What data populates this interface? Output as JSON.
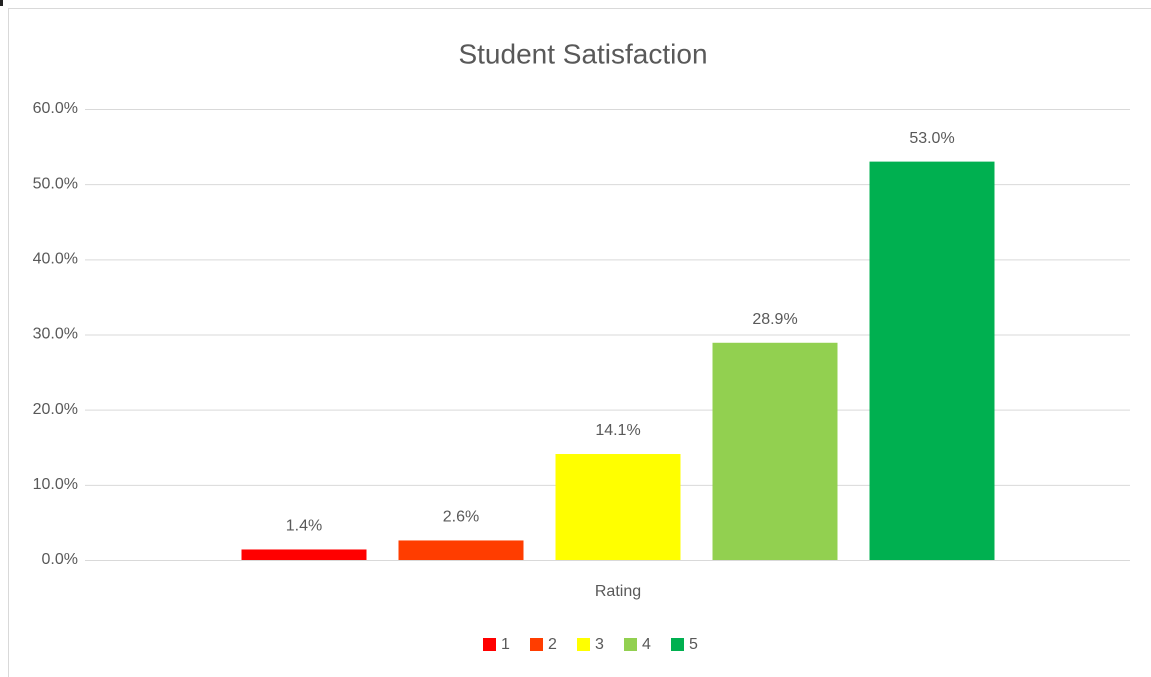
{
  "chart_data": {
    "type": "bar",
    "title": "Student Satisfaction",
    "xlabel": "Rating",
    "categories": [
      "Rating"
    ],
    "series": [
      {
        "name": "1",
        "color": "#ff0000",
        "values": [
          1.4
        ],
        "value_labels": [
          "1.4%"
        ]
      },
      {
        "name": "2",
        "color": "#ff3d00",
        "values": [
          2.6
        ],
        "value_labels": [
          "2.6%"
        ]
      },
      {
        "name": "3",
        "color": "#ffff00",
        "values": [
          14.1
        ],
        "value_labels": [
          "14.1%"
        ]
      },
      {
        "name": "4",
        "color": "#92d050",
        "values": [
          28.9
        ],
        "value_labels": [
          "28.9%"
        ]
      },
      {
        "name": "5",
        "color": "#00b050",
        "values": [
          53.0
        ],
        "value_labels": [
          "53.0%"
        ]
      }
    ],
    "ylim": [
      0,
      60
    ],
    "yticks": [
      {
        "value": 0,
        "label": "0.0%"
      },
      {
        "value": 10,
        "label": "10.0%"
      },
      {
        "value": 20,
        "label": "20.0%"
      },
      {
        "value": 30,
        "label": "30.0%"
      },
      {
        "value": 40,
        "label": "40.0%"
      },
      {
        "value": 50,
        "label": "50.0%"
      },
      {
        "value": 60,
        "label": "60.0%"
      }
    ],
    "grid": true,
    "legend": "bottom"
  }
}
